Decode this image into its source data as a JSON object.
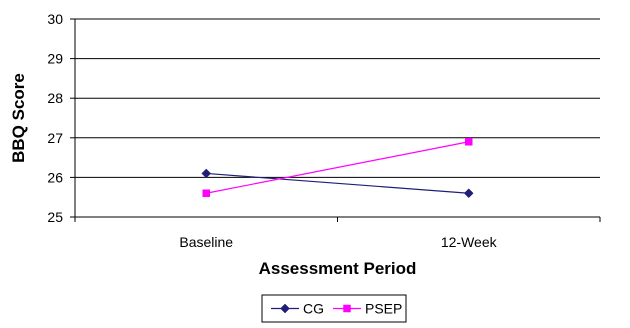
{
  "chart_data": {
    "type": "line",
    "xlabel": "Assessment Period",
    "ylabel": "BBQ Score",
    "categories": [
      "Baseline",
      "12-Week"
    ],
    "ylim": [
      25,
      30
    ],
    "yticks": [
      25,
      26,
      27,
      28,
      29,
      30
    ],
    "grid": "horizontal",
    "legend_position": "bottom",
    "series": [
      {
        "name": "CG",
        "values": [
          26.1,
          25.6
        ],
        "color": "#1f1f7a",
        "marker": "diamond"
      },
      {
        "name": "PSEP",
        "values": [
          25.6,
          26.9
        ],
        "color": "#ff00ff",
        "marker": "square"
      }
    ]
  }
}
